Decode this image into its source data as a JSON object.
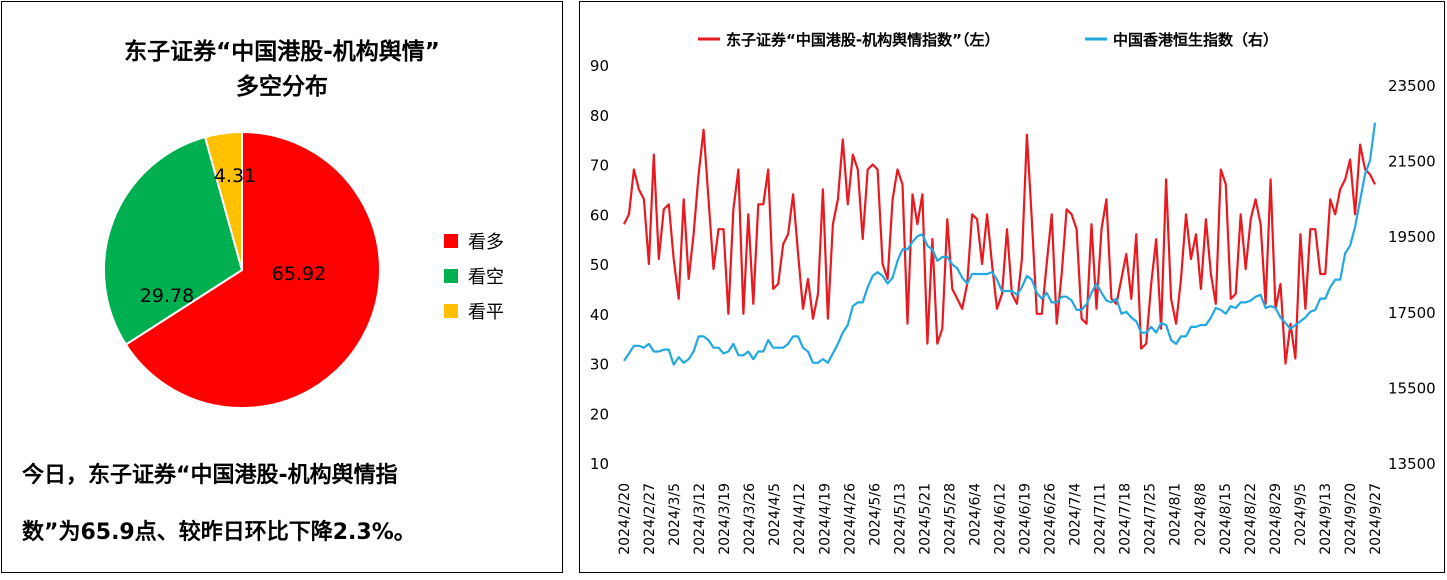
{
  "chart_data": [
    {
      "type": "pie",
      "title_line1": "东子证券“中国港股-机构舆情”",
      "title_line2": "多空分布",
      "slices": [
        {
          "label": "看多",
          "value": 65.92,
          "value_label": "65.92",
          "color": "#ff0000"
        },
        {
          "label": "看空",
          "value": 29.78,
          "value_label": "29.78",
          "color": "#00b050"
        },
        {
          "label": "看平",
          "value": 4.31,
          "value_label": "4.31",
          "color": "#ffc000"
        }
      ],
      "legend_position": "right"
    },
    {
      "type": "line",
      "legend": [
        "东子证券“中国港股-机构舆情指数”（左）",
        "中国香港恒生指数（右）"
      ],
      "legend_position": "top",
      "y_left": {
        "min": 10,
        "max": 90,
        "ticks": [
          "10",
          "20",
          "30",
          "40",
          "50",
          "60",
          "70",
          "80",
          "90"
        ]
      },
      "y_right": {
        "min": 13500,
        "max": 23500,
        "ticks": [
          "13500",
          "15500",
          "17500",
          "19500",
          "21500",
          "23500"
        ]
      },
      "x_tick_labels": [
        "2024/2/20",
        "2024/2/27",
        "2024/3/5",
        "2024/3/12",
        "2024/3/19",
        "2024/3/26",
        "2024/4/5",
        "2024/4/12",
        "2024/4/19",
        "2024/4/26",
        "2024/5/6",
        "2024/5/13",
        "2024/5/21",
        "2024/5/28",
        "2024/6/4",
        "2024/6/12",
        "2024/6/19",
        "2024/6/26",
        "2024/7/4",
        "2024/7/11",
        "2024/7/18",
        "2024/7/25",
        "2024/8/1",
        "2024/8/8",
        "2024/8/15",
        "2024/8/22",
        "2024/8/29",
        "2024/9/5",
        "2024/9/13",
        "2024/9/20",
        "2024/9/27"
      ],
      "series": [
        {
          "name": "东子证券“中国港股-机构舆情指数”（左）",
          "axis": "left",
          "color": "#e8191f",
          "values": [
            58,
            60,
            69,
            65,
            63,
            50,
            72,
            51,
            61,
            62,
            51,
            43,
            63,
            47,
            56,
            68,
            77,
            63,
            49,
            57,
            57,
            40,
            61,
            69,
            40,
            60,
            42,
            62,
            62,
            69,
            45,
            46,
            54,
            56,
            64,
            52,
            41,
            47,
            39,
            44,
            65,
            39,
            58,
            63,
            75,
            62,
            72,
            69,
            55,
            69,
            70,
            69,
            50,
            47,
            63,
            69,
            66,
            38,
            64,
            58,
            64,
            34,
            55,
            34,
            37,
            59,
            45,
            43,
            41,
            46,
            60,
            59,
            50,
            60,
            50,
            41,
            44,
            57,
            44,
            42,
            51,
            76,
            59,
            40,
            40,
            50,
            60,
            38,
            48,
            61,
            60,
            57,
            39,
            38,
            58,
            41,
            57,
            63,
            43,
            42,
            47,
            52,
            43,
            56,
            33,
            34,
            46,
            55,
            37,
            67,
            43,
            38,
            47,
            60,
            51,
            56,
            45,
            59,
            48,
            42,
            69,
            66,
            43,
            44,
            60,
            49,
            59,
            63,
            58,
            42,
            67,
            41,
            46,
            30,
            38,
            31,
            56,
            41,
            57,
            57,
            48,
            48,
            63,
            60,
            65,
            67,
            71,
            60,
            74,
            69,
            68,
            66
          ]
        },
        {
          "name": "中国香港恒生指数（右）",
          "axis": "right",
          "color": "#22a8e0",
          "values": [
            16200,
            16400,
            16600,
            16600,
            16550,
            16650,
            16450,
            16450,
            16500,
            16500,
            16100,
            16300,
            16150,
            16250,
            16450,
            16850,
            16850,
            16750,
            16550,
            16550,
            16400,
            16450,
            16650,
            16350,
            16350,
            16450,
            16250,
            16450,
            16450,
            16750,
            16550,
            16550,
            16550,
            16650,
            16850,
            16850,
            16550,
            16450,
            16150,
            16150,
            16250,
            16150,
            16400,
            16650,
            16950,
            17150,
            17650,
            17750,
            17750,
            18150,
            18450,
            18550,
            18450,
            18250,
            18400,
            18850,
            19150,
            19150,
            19350,
            19500,
            19550,
            19250,
            19150,
            18850,
            18950,
            18950,
            18750,
            18650,
            18400,
            18250,
            18500,
            18500,
            18500,
            18500,
            18550,
            18350,
            18050,
            18050,
            18050,
            17950,
            18150,
            18450,
            18350,
            18000,
            17850,
            18000,
            17750,
            17750,
            17900,
            17900,
            17800,
            17550,
            17550,
            17700,
            18000,
            18250,
            18000,
            17800,
            17750,
            17850,
            17450,
            17500,
            17350,
            17250,
            16950,
            16950,
            17100,
            16950,
            17200,
            17150,
            16750,
            16650,
            16850,
            16850,
            17100,
            17100,
            17150,
            17150,
            17350,
            17600,
            17550,
            17450,
            17650,
            17600,
            17750,
            17750,
            17800,
            17900,
            17950,
            17600,
            17650,
            17600,
            17350,
            17200,
            17050,
            17150,
            17250,
            17350,
            17500,
            17550,
            17850,
            17850,
            18150,
            18350,
            18350,
            19050,
            19250,
            19750,
            20450,
            21150,
            21500,
            22500
          ]
        }
      ]
    }
  ],
  "summary": {
    "line1": "今日，东子证券“中国港股-机构舆情指",
    "line2": "数”为65.9点、较昨日环比下降2.3%。"
  }
}
